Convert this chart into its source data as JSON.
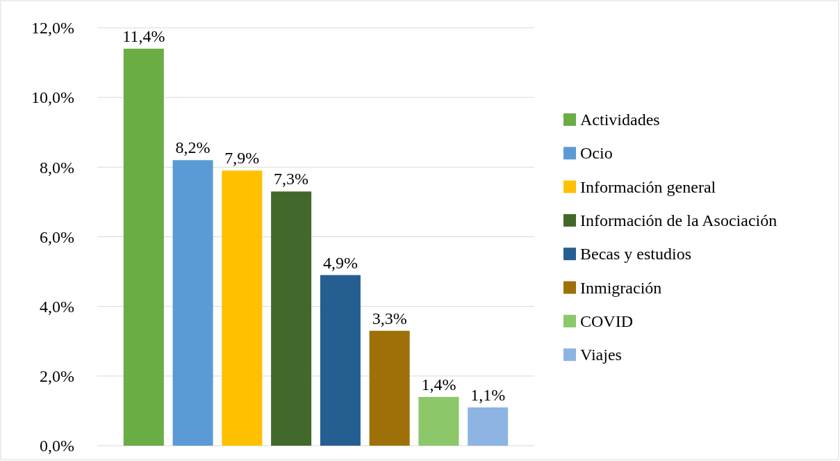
{
  "chart_data": {
    "type": "bar",
    "categories": [
      null
    ],
    "series": [
      {
        "name": "Actividades",
        "color": "#6aad45",
        "values": [
          11.4
        ],
        "value_labels": [
          "11,4%"
        ]
      },
      {
        "name": "Ocio",
        "color": "#5b9bd5",
        "values": [
          8.2
        ],
        "value_labels": [
          "8,2%"
        ]
      },
      {
        "name": "Información general",
        "color": "#ffc000",
        "values": [
          7.9
        ],
        "value_labels": [
          "7,9%"
        ]
      },
      {
        "name": "Información de la Asociación",
        "color": "#43682b",
        "values": [
          7.3
        ],
        "value_labels": [
          "7,3%"
        ]
      },
      {
        "name": "Becas y estudios",
        "color": "#255e91",
        "values": [
          4.9
        ],
        "value_labels": [
          "4,9%"
        ]
      },
      {
        "name": "Inmigración",
        "color": "#9e7008",
        "values": [
          3.3
        ],
        "value_labels": [
          "3,3%"
        ]
      },
      {
        "name": "COVID",
        "color": "#8cc769",
        "values": [
          1.4
        ],
        "value_labels": [
          "1,4%"
        ]
      },
      {
        "name": "Viajes",
        "color": "#8db4e2",
        "values": [
          1.1
        ],
        "value_labels": [
          "1,1%"
        ]
      }
    ],
    "ylim": [
      0,
      12
    ],
    "yticks": [
      {
        "value": 0,
        "label": "0,0%"
      },
      {
        "value": 2,
        "label": "2,0%"
      },
      {
        "value": 4,
        "label": "4,0%"
      },
      {
        "value": 6,
        "label": "6,0%"
      },
      {
        "value": 8,
        "label": "8,0%"
      },
      {
        "value": 10,
        "label": "10,0%"
      },
      {
        "value": 12,
        "label": "12,0%"
      }
    ],
    "grid": "y",
    "legend": "right"
  }
}
